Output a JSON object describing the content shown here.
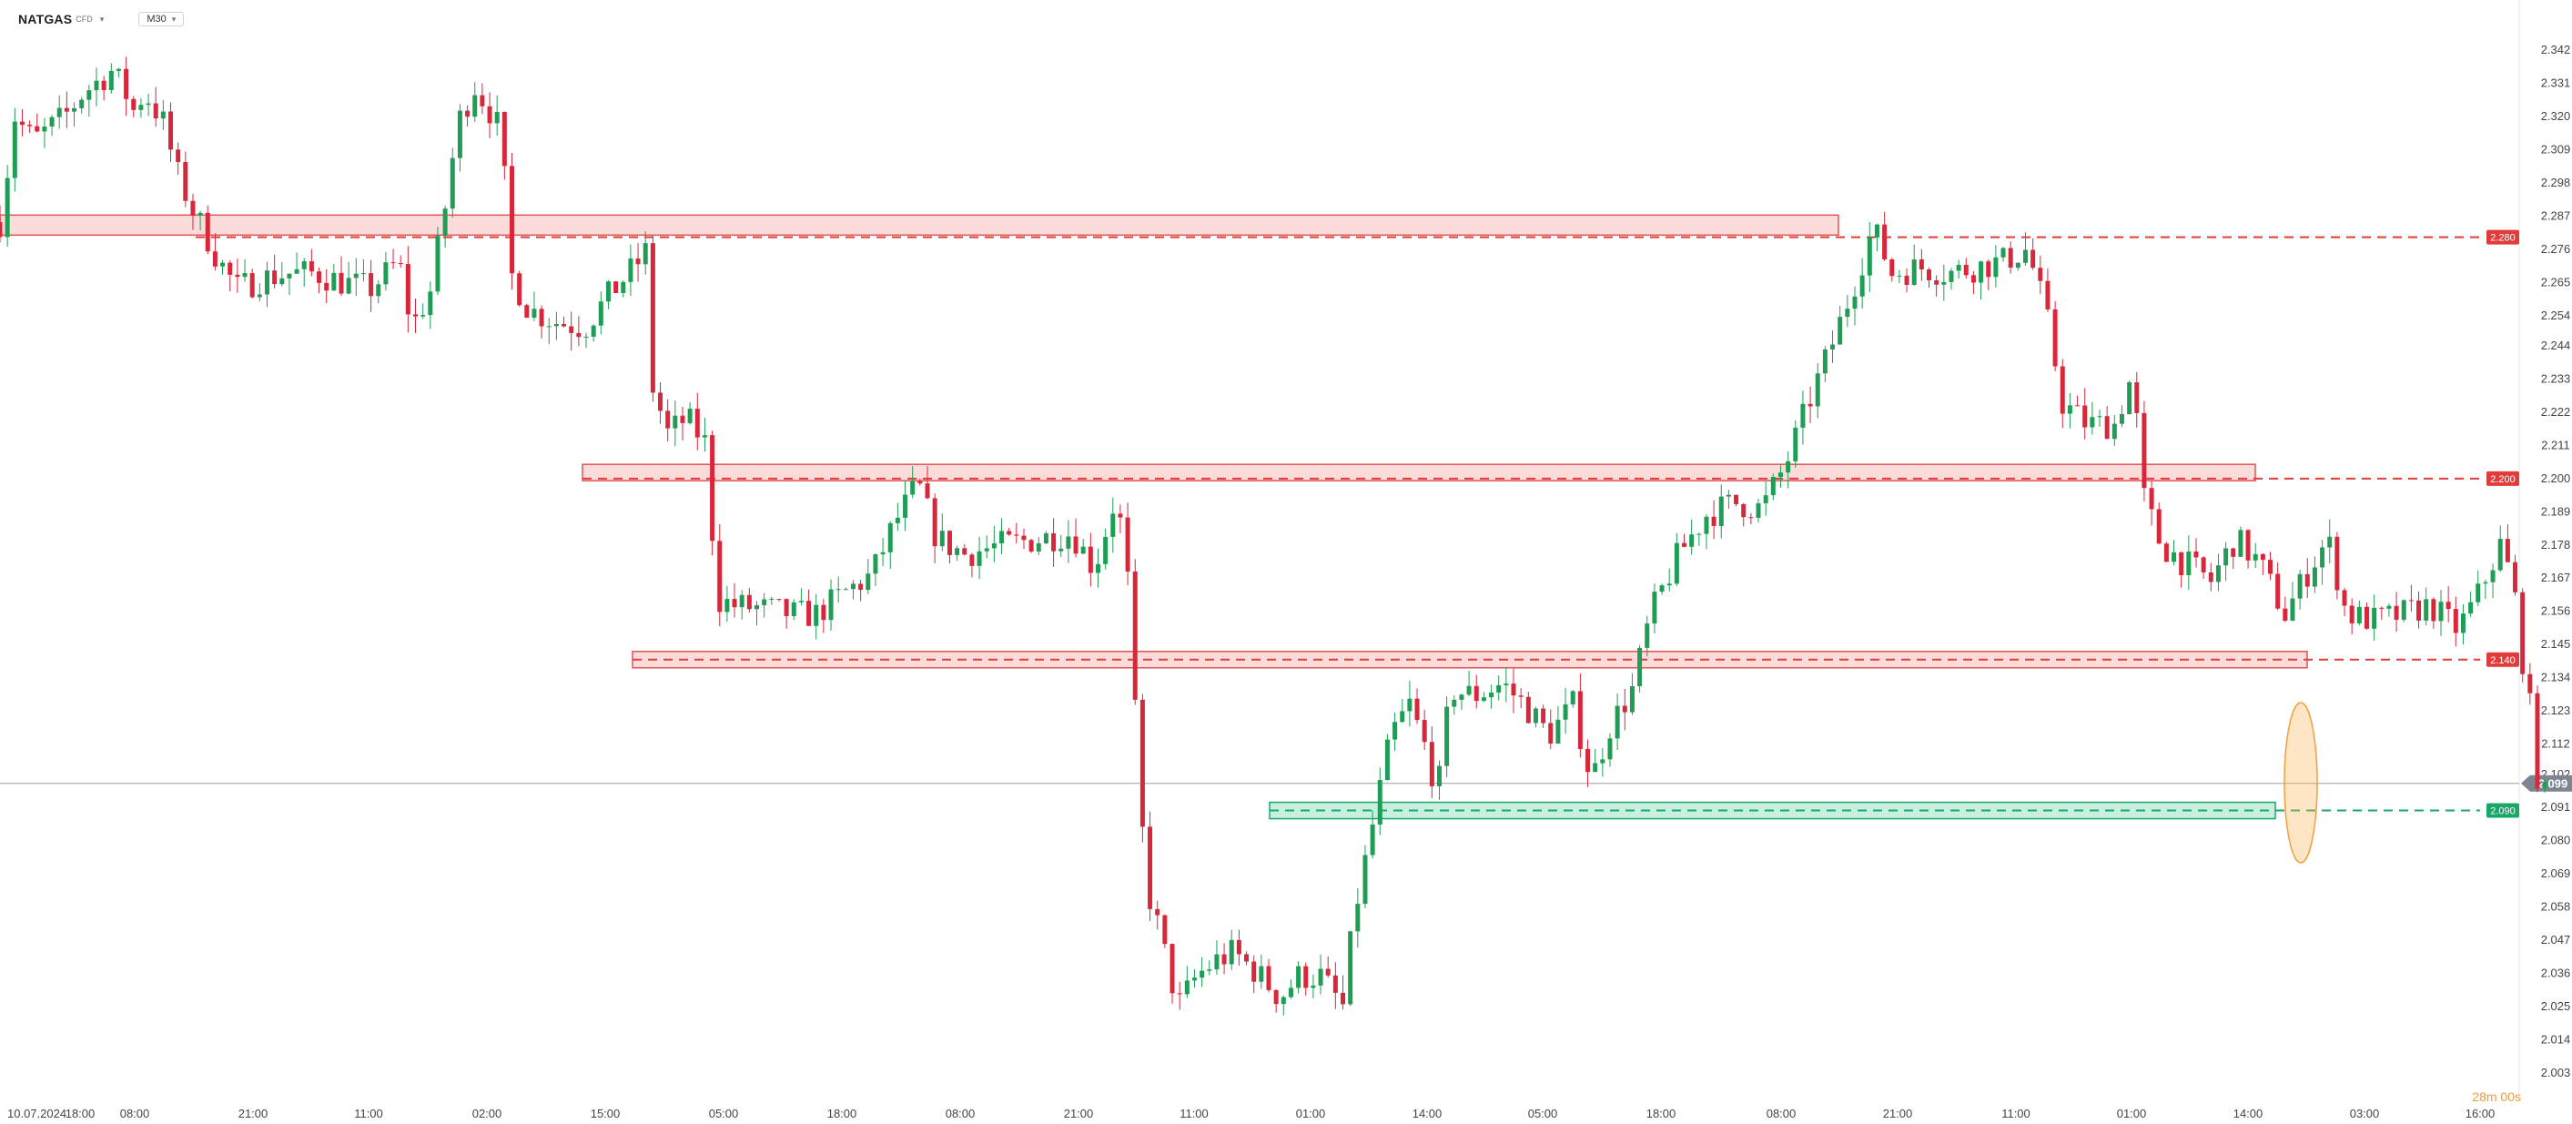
{
  "header": {
    "symbol": "NATGAS",
    "instrument_type": "CFD",
    "timeframe": "M30"
  },
  "countdown": "28m 00s",
  "current_price": "2.099",
  "chart_data": {
    "type": "candlestick",
    "title": "",
    "ylim": [
      2.003,
      2.342
    ],
    "y_ticks": [
      "2.342",
      "2.331",
      "2.320",
      "2.309",
      "2.298",
      "2.287",
      "2.276",
      "2.265",
      "2.254",
      "2.244",
      "2.233",
      "2.222",
      "2.211",
      "2.200",
      "2.189",
      "2.178",
      "2.167",
      "2.156",
      "2.145",
      "2.134",
      "2.123",
      "2.112",
      "2.102",
      "2.091",
      "2.080",
      "2.069",
      "2.058",
      "2.047",
      "2.036",
      "2.025",
      "2.014",
      "2.003"
    ],
    "x_ticks": [
      "10.07.2024",
      "18:00",
      "08:00",
      "21:00",
      "11:00",
      "02:00",
      "15:00",
      "05:00",
      "18:00",
      "08:00",
      "21:00",
      "11:00",
      "01:00",
      "14:00",
      "05:00",
      "18:00",
      "08:00",
      "21:00",
      "11:00",
      "01:00",
      "14:00",
      "03:00",
      "16:00"
    ],
    "current_price": 2.099,
    "levels": [
      {
        "label": "2.280",
        "value": 2.28,
        "color": "#e23b3b"
      },
      {
        "label": "2.200",
        "value": 2.2,
        "color": "#e23b3b"
      },
      {
        "label": "2.140",
        "value": 2.14,
        "color": "#e23b3b"
      },
      {
        "label": "2.090",
        "value": 2.09,
        "color": "#1aa86a"
      }
    ],
    "zones": [
      {
        "value": 2.284,
        "color": "red"
      },
      {
        "value": 2.202,
        "color": "red"
      },
      {
        "value": 2.14,
        "color": "red"
      },
      {
        "value": 2.09,
        "color": "green"
      }
    ],
    "up_color": "#1f9d55",
    "down_color": "#d8263a",
    "path": [
      [
        0,
        2.285
      ],
      [
        8,
        2.32
      ],
      [
        18,
        2.312
      ],
      [
        35,
        2.32
      ],
      [
        45,
        2.328
      ],
      [
        60,
        2.335
      ],
      [
        66,
        2.33
      ],
      [
        72,
        2.322
      ],
      [
        78,
        2.328
      ],
      [
        88,
        2.318
      ],
      [
        95,
        2.302
      ],
      [
        103,
        2.29
      ],
      [
        110,
        2.282
      ],
      [
        118,
        2.272
      ],
      [
        128,
        2.263
      ],
      [
        140,
        2.266
      ],
      [
        155,
        2.268
      ],
      [
        170,
        2.268
      ],
      [
        185,
        2.265
      ],
      [
        200,
        2.263
      ],
      [
        215,
        2.272
      ],
      [
        222,
        2.25
      ],
      [
        232,
        2.262
      ],
      [
        240,
        2.29
      ],
      [
        247,
        2.318
      ],
      [
        256,
        2.33
      ],
      [
        264,
        2.322
      ],
      [
        270,
        2.315
      ],
      [
        276,
        2.267
      ],
      [
        285,
        2.256
      ],
      [
        300,
        2.252
      ],
      [
        315,
        2.25
      ],
      [
        330,
        2.262
      ],
      [
        342,
        2.27
      ],
      [
        348,
        2.275
      ],
      [
        352,
        2.23
      ],
      [
        360,
        2.215
      ],
      [
        370,
        2.22
      ],
      [
        380,
        2.212
      ],
      [
        387,
        2.16
      ],
      [
        395,
        2.158
      ],
      [
        410,
        2.157
      ],
      [
        428,
        2.155
      ],
      [
        440,
        2.155
      ],
      [
        455,
        2.162
      ],
      [
        470,
        2.168
      ],
      [
        482,
        2.185
      ],
      [
        495,
        2.198
      ],
      [
        505,
        2.18
      ],
      [
        520,
        2.175
      ],
      [
        540,
        2.178
      ],
      [
        560,
        2.18
      ],
      [
        578,
        2.182
      ],
      [
        590,
        2.17
      ],
      [
        602,
        2.195
      ],
      [
        608,
        2.166
      ],
      [
        614,
        2.1
      ],
      [
        618,
        2.065
      ],
      [
        625,
        2.05
      ],
      [
        635,
        2.025
      ],
      [
        645,
        2.035
      ],
      [
        655,
        2.04
      ],
      [
        665,
        2.043
      ],
      [
        678,
        2.036
      ],
      [
        690,
        2.028
      ],
      [
        700,
        2.035
      ],
      [
        712,
        2.035
      ],
      [
        724,
        2.025
      ],
      [
        730,
        2.055
      ],
      [
        740,
        2.085
      ],
      [
        750,
        2.115
      ],
      [
        760,
        2.125
      ],
      [
        770,
        2.108
      ],
      [
        775,
        2.095
      ],
      [
        782,
        2.13
      ],
      [
        795,
        2.128
      ],
      [
        810,
        2.132
      ],
      [
        822,
        2.125
      ],
      [
        835,
        2.115
      ],
      [
        848,
        2.125
      ],
      [
        858,
        2.1
      ],
      [
        868,
        2.118
      ],
      [
        880,
        2.13
      ],
      [
        890,
        2.155
      ],
      [
        905,
        2.175
      ],
      [
        920,
        2.188
      ],
      [
        935,
        2.192
      ],
      [
        950,
        2.19
      ],
      [
        963,
        2.205
      ],
      [
        975,
        2.225
      ],
      [
        988,
        2.245
      ],
      [
        1000,
        2.265
      ],
      [
        1010,
        2.283
      ],
      [
        1020,
        2.268
      ],
      [
        1035,
        2.27
      ],
      [
        1050,
        2.268
      ],
      [
        1065,
        2.27
      ],
      [
        1080,
        2.272
      ],
      [
        1093,
        2.276
      ],
      [
        1103,
        2.255
      ],
      [
        1112,
        2.225
      ],
      [
        1125,
        2.218
      ],
      [
        1140,
        2.218
      ],
      [
        1150,
        2.235
      ],
      [
        1155,
        2.195
      ],
      [
        1165,
        2.178
      ],
      [
        1178,
        2.172
      ],
      [
        1192,
        2.166
      ],
      [
        1205,
        2.18
      ],
      [
        1218,
        2.172
      ],
      [
        1232,
        2.155
      ],
      [
        1245,
        2.17
      ],
      [
        1255,
        2.18
      ],
      [
        1265,
        2.155
      ],
      [
        1280,
        2.153
      ],
      [
        1295,
        2.155
      ],
      [
        1310,
        2.158
      ],
      [
        1325,
        2.15
      ],
      [
        1335,
        2.16
      ],
      [
        1348,
        2.178
      ],
      [
        1355,
        2.165
      ],
      [
        1360,
        2.14
      ],
      [
        1365,
        2.12
      ],
      [
        1370,
        2.09
      ],
      [
        1374,
        2.1
      ]
    ]
  }
}
